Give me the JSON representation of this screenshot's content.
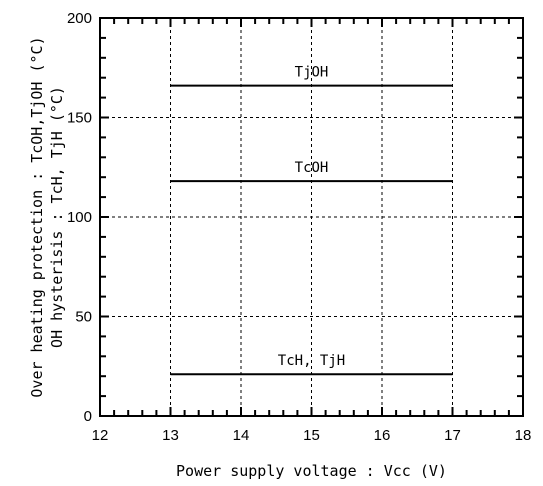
{
  "chart_data": {
    "type": "line",
    "title": "",
    "xlabel": "Power supply voltage : Vcc (V)",
    "ylabel_lines": [
      "Over heating protection : TcOH,TjOH (°C)",
      "OH hysterisis : TcH, TjH (°C)"
    ],
    "xlim": [
      12,
      18
    ],
    "ylim": [
      0,
      200
    ],
    "x_ticks": [
      "12",
      "13",
      "14",
      "15",
      "16",
      "17",
      "18"
    ],
    "y_ticks": [
      "0",
      "50",
      "100",
      "150",
      "200"
    ],
    "grid": true,
    "series": [
      {
        "name": "TjOH",
        "x": [
          13,
          17
        ],
        "y": [
          166,
          166
        ]
      },
      {
        "name": "TcOH",
        "x": [
          13,
          17
        ],
        "y": [
          118,
          118
        ]
      },
      {
        "name": "TcH, TjH",
        "x": [
          13,
          17
        ],
        "y": [
          21,
          21
        ]
      }
    ],
    "colors": {
      "line": "#000000",
      "grid": "#000000",
      "background": "#ffffff"
    }
  }
}
